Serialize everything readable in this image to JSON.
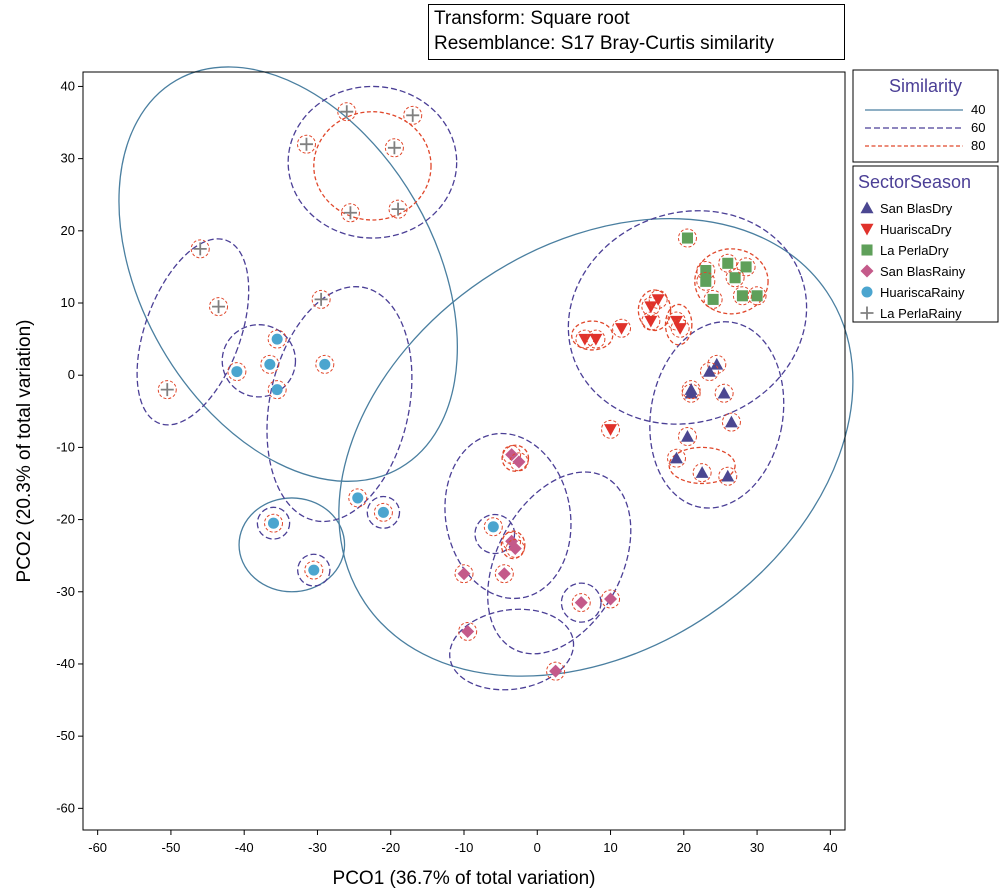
{
  "header_box": {
    "line1": "Transform: Square root",
    "line2": "Resemblance: S17 Bray-Curtis similarity"
  },
  "chart_data": {
    "type": "scatter",
    "title": "",
    "xlabel": "PCO1 (36.7% of total variation)",
    "ylabel": "PCO2 (20.3% of total variation)",
    "xlim": [
      -62,
      42
    ],
    "ylim": [
      -63,
      42
    ],
    "xticks": [
      -60,
      -50,
      -40,
      -30,
      -20,
      -10,
      0,
      10,
      20,
      30,
      40
    ],
    "yticks": [
      -60,
      -50,
      -40,
      -30,
      -20,
      -10,
      0,
      10,
      20,
      30,
      40
    ],
    "grid": false,
    "similarity_legend": {
      "title": "Similarity",
      "entries": [
        {
          "label": "40",
          "color": "#4a7fa0",
          "dash": "solid"
        },
        {
          "label": "60",
          "color": "#4b3f96",
          "dash": "dashed"
        },
        {
          "label": "80",
          "color": "#e0472b",
          "dash": "dashed"
        }
      ]
    },
    "group_legend": {
      "title": "SectorSeason",
      "placement": "right"
    },
    "series": [
      {
        "name": "San BlasDry",
        "marker": "triangle-up",
        "color": "#4b4791",
        "points": [
          [
            24.5,
            1.5
          ],
          [
            23.5,
            0.5
          ],
          [
            21.0,
            -2.5
          ],
          [
            21.0,
            -2.0
          ],
          [
            25.5,
            -2.5
          ],
          [
            26.5,
            -6.5
          ],
          [
            20.5,
            -8.5
          ],
          [
            19.0,
            -11.5
          ],
          [
            22.5,
            -13.5
          ],
          [
            26.0,
            -14.0
          ]
        ]
      },
      {
        "name": "HuariscaDry",
        "marker": "triangle-down",
        "color": "#e0322b",
        "points": [
          [
            6.5,
            5.0
          ],
          [
            8.0,
            5.0
          ],
          [
            11.5,
            6.5
          ],
          [
            15.5,
            7.5
          ],
          [
            15.5,
            9.5
          ],
          [
            16.5,
            10.5
          ],
          [
            19.0,
            7.5
          ],
          [
            19.5,
            6.5
          ],
          [
            10.0,
            -7.5
          ]
        ]
      },
      {
        "name": "La PerlaDry",
        "marker": "square",
        "color": "#5fa05a",
        "points": [
          [
            20.5,
            19.0
          ],
          [
            23.0,
            14.5
          ],
          [
            23.0,
            13.0
          ],
          [
            26.0,
            15.5
          ],
          [
            27.0,
            13.5
          ],
          [
            28.5,
            15.0
          ],
          [
            24.0,
            10.5
          ],
          [
            28.0,
            11.0
          ],
          [
            30.0,
            11.0
          ]
        ]
      },
      {
        "name": "San BlasRainy",
        "marker": "diamond",
        "color": "#c45a8a",
        "points": [
          [
            -3.5,
            -11.0
          ],
          [
            -2.5,
            -12.0
          ],
          [
            -3.5,
            -23.0
          ],
          [
            -3.0,
            -24.0
          ],
          [
            -10.0,
            -27.5
          ],
          [
            -4.5,
            -27.5
          ],
          [
            6.0,
            -31.5
          ],
          [
            10.0,
            -31.0
          ],
          [
            -9.5,
            -35.5
          ],
          [
            2.5,
            -41.0
          ]
        ]
      },
      {
        "name": "HuariscaRainy",
        "marker": "circle",
        "color": "#4ba5cf",
        "points": [
          [
            -35.5,
            5.0
          ],
          [
            -41.0,
            0.5
          ],
          [
            -36.5,
            1.5
          ],
          [
            -35.5,
            -2.0
          ],
          [
            -29.0,
            1.5
          ],
          [
            -36.0,
            -20.5
          ],
          [
            -30.5,
            -27.0
          ],
          [
            -21.0,
            -19.0
          ],
          [
            -24.5,
            -17.0
          ],
          [
            -6.0,
            -21.0
          ]
        ]
      },
      {
        "name": "La PerlaRainy",
        "marker": "plus",
        "color": "#808080",
        "points": [
          [
            -26.0,
            36.5
          ],
          [
            -17.0,
            36.0
          ],
          [
            -31.5,
            32.0
          ],
          [
            -19.5,
            31.5
          ],
          [
            -25.5,
            22.5
          ],
          [
            -19.0,
            23.0
          ],
          [
            -46.0,
            17.5
          ],
          [
            -43.5,
            9.5
          ],
          [
            -29.5,
            10.5
          ],
          [
            -50.5,
            -2.0
          ]
        ]
      }
    ]
  }
}
